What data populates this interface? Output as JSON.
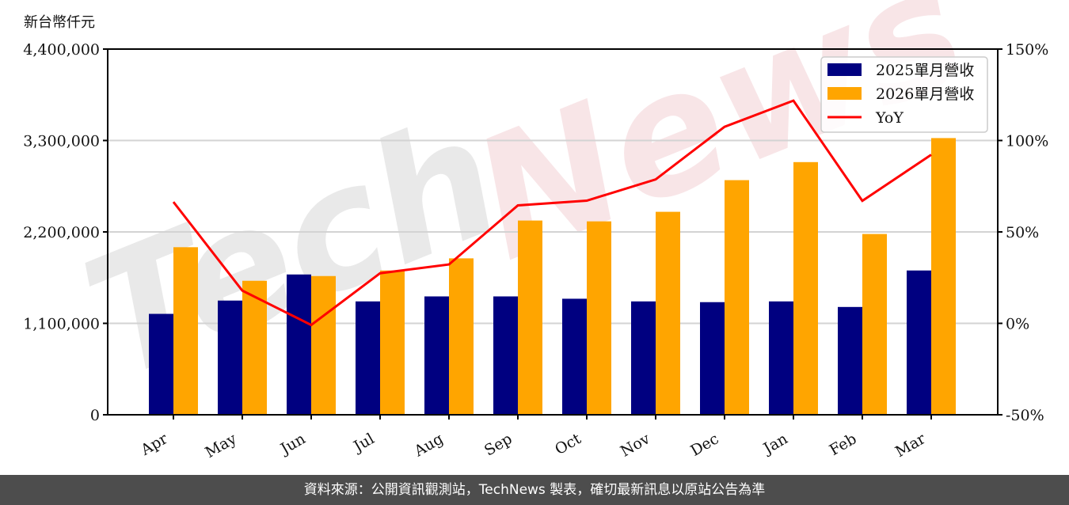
{
  "chart_data": {
    "type": "bar",
    "title": "",
    "ylabel": "新台幣仟元",
    "xlabel": "",
    "ylim": [
      0,
      4400000
    ],
    "y2lim": [
      -50,
      150
    ],
    "yticks": [
      "0",
      "1,100,000",
      "2,200,000",
      "3,300,000",
      "4,400,000"
    ],
    "ytick_values": [
      0,
      1100000,
      2200000,
      3300000,
      4400000
    ],
    "y2ticks": [
      "-50%",
      "0%",
      "50%",
      "100%",
      "150%"
    ],
    "y2tick_values": [
      -50,
      0,
      50,
      100,
      150
    ],
    "grid": true,
    "legend_position": "upper right",
    "categories": [
      "Apr",
      "May",
      "Jun",
      "Jul",
      "Aug",
      "Sep",
      "Oct",
      "Nov",
      "Dec",
      "Jan",
      "Feb",
      "Mar"
    ],
    "series": [
      {
        "name": "2025單月營收",
        "type": "bar",
        "color": "#000080",
        "values": [
          1214000,
          1374000,
          1688000,
          1364000,
          1424000,
          1424000,
          1396000,
          1364000,
          1355000,
          1364000,
          1297000,
          1736000
        ]
      },
      {
        "name": "2026單月營收",
        "type": "bar",
        "color": "#ffa500",
        "values": [
          2016000,
          1612000,
          1669000,
          1736000,
          1882000,
          2337000,
          2327000,
          2442000,
          2823000,
          3040000,
          2175000,
          3329000
        ]
      },
      {
        "name": "YoY",
        "type": "line",
        "axis": "right",
        "color": "#ff0000",
        "values": [
          66.4,
          17.9,
          -0.9,
          27.4,
          32.2,
          64.5,
          67.1,
          78.7,
          107.5,
          121.8,
          67.0,
          92.2
        ]
      }
    ]
  },
  "header": {
    "unit_label": "新台幣仟元"
  },
  "watermark": {
    "part1": "Tech",
    "part2": "News"
  },
  "footer": {
    "text": "資料來源：公開資訊觀測站，TechNews 製表，確切最新訊息以原站公告為準"
  }
}
